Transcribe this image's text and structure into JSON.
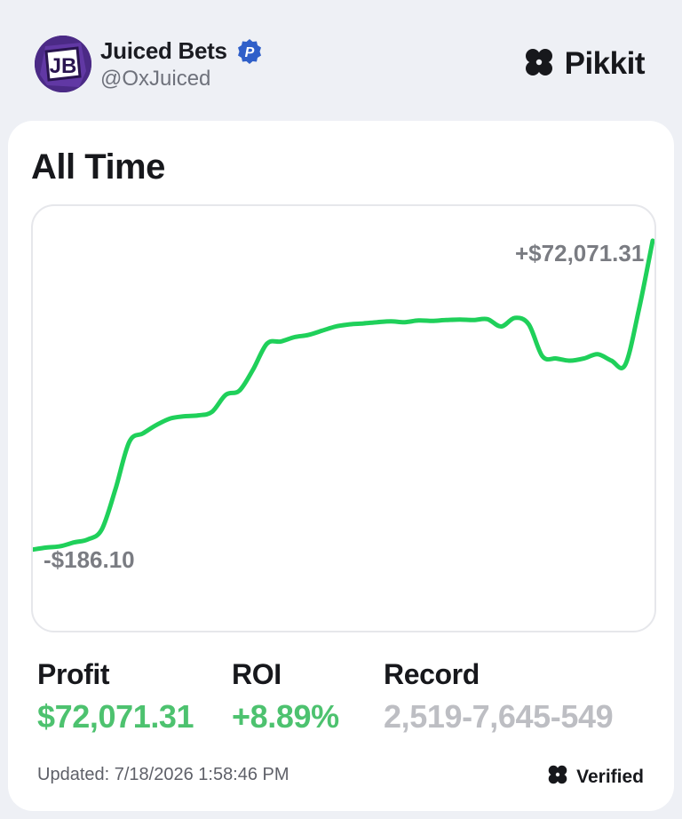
{
  "user": {
    "avatar_initials": "JB",
    "name": "Juiced Bets",
    "handle": "@OxJuiced",
    "verified_icon": "verified-badge-icon"
  },
  "brand": {
    "name": "Pikkit",
    "icon": "clover-icon"
  },
  "card": {
    "title": "All Time",
    "chart_end_label": "+$72,071.31",
    "chart_start_label": "-$186.10",
    "stats": {
      "profit_label": "Profit",
      "profit_value": "$72,071.31",
      "roi_label": "ROI",
      "roi_value": "+8.89%",
      "record_label": "Record",
      "record_value": "2,519-7,645-549"
    },
    "updated": "Updated: 7/18/2026 1:58:46 PM",
    "verified_label": "Verified"
  },
  "colors": {
    "line": "#1fd05a",
    "positive": "#4dc26f",
    "muted": "#bdbec3",
    "badge": "#2f5fc9",
    "avatar_bg": "#4b2a86"
  },
  "chart_data": {
    "type": "line",
    "title": "",
    "xlabel": "",
    "ylabel": "",
    "ylim": [
      -15000,
      76000
    ],
    "annotations": [
      "+$72,071.31",
      "-$186.10"
    ],
    "series": [
      {
        "values": [
          -186,
          300,
          600,
          1500,
          2200,
          4500,
          14000,
          25000,
          27000,
          29000,
          30500,
          31000,
          31200,
          32000,
          36000,
          37000,
          42000,
          48000,
          48500,
          49500,
          50000,
          51000,
          52000,
          52500,
          52700,
          53000,
          53200,
          53000,
          53400,
          53300,
          53500,
          53600,
          53500,
          53700,
          52000,
          54000,
          52500,
          45000,
          44500,
          44000,
          44500,
          45500,
          44000,
          43000,
          56000,
          72071
        ]
      }
    ]
  }
}
